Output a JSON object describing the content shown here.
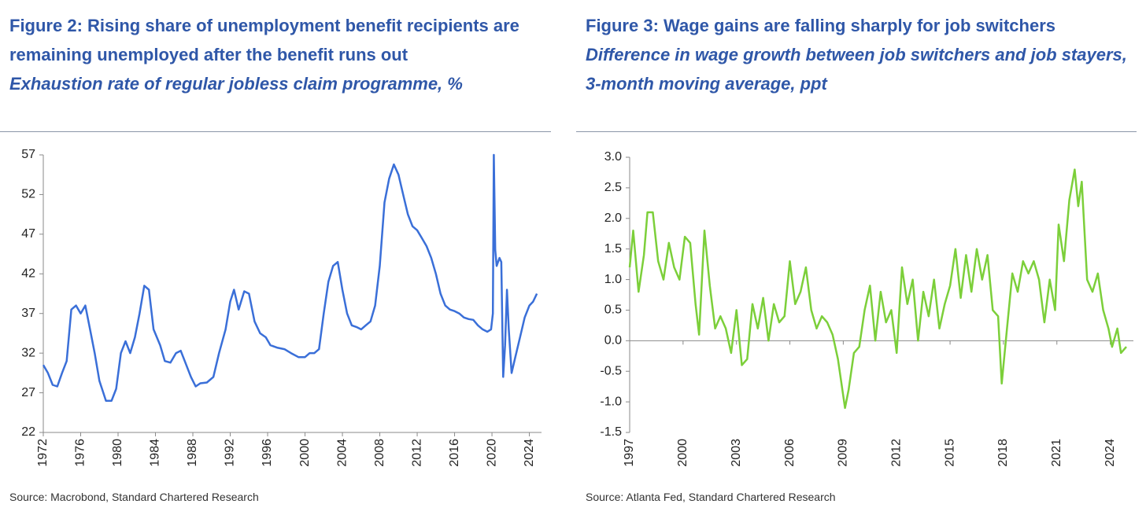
{
  "chart_data": [
    {
      "type": "line",
      "title": "Figure 2:  Rising share of unemployment benefit recipients are remaining unemployed after the benefit runs out",
      "subtitle": "Exhaustion rate of regular jobless claim programme, %",
      "source": "Source: Macrobond, Standard Chartered Research",
      "xlim": [
        1972,
        2025.3
      ],
      "xticks": [
        1972,
        1976,
        1980,
        1984,
        1988,
        1992,
        1996,
        2000,
        2004,
        2008,
        2012,
        2016,
        2020,
        2024
      ],
      "ylim": [
        22,
        57
      ],
      "yticks": [
        22,
        27,
        32,
        37,
        42,
        47,
        52,
        57
      ],
      "series": [
        {
          "color": "#3a6fd8",
          "x": [
            1972.0,
            1972.5,
            1973,
            1973.5,
            1974,
            1974.5,
            1975,
            1975.5,
            1976,
            1976.5,
            1977,
            1977.5,
            1978,
            1978.7,
            1979.3,
            1979.8,
            1980.3,
            1980.8,
            1981.3,
            1981.8,
            1982.3,
            1982.8,
            1983.3,
            1983.8,
            1984.5,
            1985,
            1985.6,
            1986.2,
            1986.7,
            1987.2,
            1987.8,
            1988.3,
            1988.8,
            1989.5,
            1990.2,
            1990.8,
            1991.5,
            1992,
            1992.4,
            1992.9,
            1993.5,
            1994,
            1994.6,
            1995.2,
            1995.8,
            1996.3,
            1997,
            1997.8,
            1998.5,
            1999.3,
            2000,
            2000.5,
            2001,
            2001.5,
            2002,
            2002.5,
            2003,
            2003.5,
            2004,
            2004.5,
            2005,
            2005.5,
            2006,
            2006.5,
            2007,
            2007.5,
            2008,
            2008.5,
            2009,
            2009.5,
            2010,
            2010.5,
            2011,
            2011.5,
            2012,
            2012.5,
            2013,
            2013.5,
            2014,
            2014.5,
            2015,
            2015.5,
            2016,
            2016.5,
            2017,
            2017.5,
            2018,
            2018.5,
            2019,
            2019.5,
            2019.9,
            2020.1,
            2020.2,
            2020.35,
            2020.5,
            2020.8,
            2021.0,
            2021.2,
            2021.4,
            2021.6,
            2021.8,
            2022.1,
            2022.5,
            2023,
            2023.5,
            2024,
            2024.4,
            2024.8
          ],
          "values": [
            30.5,
            29.5,
            28,
            27.8,
            29.5,
            31,
            37.5,
            38,
            37,
            38,
            35,
            32,
            28.5,
            26,
            26,
            27.5,
            32,
            33.5,
            32,
            34,
            37,
            40.5,
            40,
            35,
            33,
            31,
            30.8,
            32,
            32.3,
            30.8,
            29,
            27.8,
            28.2,
            28.3,
            29,
            32,
            35,
            38.5,
            40,
            37.5,
            39.8,
            39.5,
            36,
            34.5,
            34,
            33,
            32.7,
            32.5,
            32,
            31.5,
            31.5,
            32,
            32,
            32.5,
            37,
            41,
            43,
            43.5,
            40,
            37,
            35.5,
            35.3,
            35,
            35.5,
            36,
            38,
            43,
            51,
            54,
            55.8,
            54.5,
            52,
            49.5,
            48,
            47.5,
            46.5,
            45.5,
            44,
            42,
            39.5,
            38,
            37.5,
            37.3,
            37,
            36.5,
            36.3,
            36.2,
            35.5,
            35,
            34.7,
            35,
            37,
            57,
            45,
            43,
            44,
            43.5,
            29,
            33,
            40,
            35,
            29.5,
            31.5,
            34,
            36.5,
            38,
            38.5,
            39.5
          ]
        }
      ]
    },
    {
      "type": "line",
      "title": "Figure 3: Wage gains are falling sharply for job switchers",
      "subtitle": "Difference in wage growth between job switchers and job stayers, 3-month moving average, ppt",
      "source": "Source: Atlanta Fed, Standard Chartered Research",
      "xlim": [
        1997,
        2025.3
      ],
      "xticks": [
        1997,
        2000,
        2003,
        2006,
        2009,
        2012,
        2015,
        2018,
        2021,
        2024
      ],
      "ylim": [
        -1.5,
        3.0
      ],
      "yticks": [
        -1.5,
        {
          "value": -1.0,
          "label": "-1.0"
        },
        -0.5,
        {
          "value": 0.0,
          "label": "0.0"
        },
        0.5,
        {
          "value": 1.0,
          "label": "1.0"
        },
        1.5,
        {
          "value": 2.0,
          "label": "2.0"
        },
        2.5,
        {
          "value": 3.0,
          "label": "3.0"
        }
      ],
      "series": [
        {
          "color": "#7ccf3a",
          "x": [
            1997.0,
            1997.2,
            1997.5,
            1997.8,
            1998.0,
            1998.3,
            1998.6,
            1998.9,
            1999.2,
            1999.5,
            1999.8,
            2000.1,
            2000.4,
            2000.7,
            2000.9,
            2001.2,
            2001.5,
            2001.8,
            2002.1,
            2002.4,
            2002.7,
            2003.0,
            2003.3,
            2003.6,
            2003.9,
            2004.2,
            2004.5,
            2004.8,
            2005.1,
            2005.4,
            2005.7,
            2006.0,
            2006.3,
            2006.6,
            2006.9,
            2007.2,
            2007.5,
            2007.8,
            2008.1,
            2008.4,
            2008.7,
            2008.9,
            2009.1,
            2009.3,
            2009.6,
            2009.9,
            2010.2,
            2010.5,
            2010.8,
            2011.1,
            2011.4,
            2011.7,
            2012.0,
            2012.3,
            2012.6,
            2012.9,
            2013.2,
            2013.5,
            2013.8,
            2014.1,
            2014.4,
            2014.7,
            2015.0,
            2015.3,
            2015.6,
            2015.9,
            2016.2,
            2016.5,
            2016.8,
            2017.1,
            2017.4,
            2017.7,
            2017.9,
            2018.2,
            2018.5,
            2018.8,
            2019.1,
            2019.4,
            2019.7,
            2020.0,
            2020.3,
            2020.6,
            2020.9,
            2021.1,
            2021.4,
            2021.7,
            2022.0,
            2022.2,
            2022.4,
            2022.7,
            2023.0,
            2023.3,
            2023.6,
            2023.9,
            2024.1,
            2024.4,
            2024.6,
            2024.9
          ],
          "values": [
            1.2,
            1.8,
            0.8,
            1.4,
            2.1,
            2.1,
            1.3,
            1.0,
            1.6,
            1.2,
            1.0,
            1.7,
            1.6,
            0.6,
            0.1,
            1.8,
            0.9,
            0.2,
            0.4,
            0.2,
            -0.2,
            0.5,
            -0.4,
            -0.3,
            0.6,
            0.2,
            0.7,
            0.0,
            0.6,
            0.3,
            0.4,
            1.3,
            0.6,
            0.8,
            1.2,
            0.5,
            0.2,
            0.4,
            0.3,
            0.1,
            -0.3,
            -0.7,
            -1.1,
            -0.8,
            -0.2,
            -0.1,
            0.5,
            0.9,
            0.0,
            0.8,
            0.3,
            0.5,
            -0.2,
            1.2,
            0.6,
            1.0,
            0.0,
            0.8,
            0.4,
            1.0,
            0.2,
            0.6,
            0.9,
            1.5,
            0.7,
            1.4,
            0.8,
            1.5,
            1.0,
            1.4,
            0.5,
            0.4,
            -0.7,
            0.2,
            1.1,
            0.8,
            1.3,
            1.1,
            1.3,
            1.0,
            0.3,
            1.0,
            0.5,
            1.9,
            1.3,
            2.3,
            2.8,
            2.2,
            2.6,
            1.0,
            0.8,
            1.1,
            0.5,
            0.2,
            -0.1,
            0.2,
            -0.2,
            -0.1
          ]
        }
      ]
    }
  ]
}
